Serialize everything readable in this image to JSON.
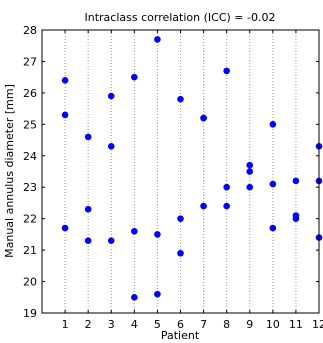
{
  "chart_data": {
    "type": "scatter",
    "title": "Intraclass correlation (ICC) = -0.02",
    "xlabel": "Patient",
    "ylabel": "Manual annulus diameter [mm]",
    "xlim": [
      0,
      12
    ],
    "ylim": [
      19,
      28
    ],
    "xticks": [
      1,
      2,
      3,
      4,
      5,
      6,
      7,
      8,
      9,
      10,
      11,
      12
    ],
    "xtick_labels": [
      "1",
      "2",
      "3",
      "4",
      "5",
      "6",
      "7",
      "8",
      "9",
      "10",
      "11",
      "12"
    ],
    "yticks": [
      19,
      20,
      21,
      22,
      23,
      24,
      25,
      26,
      27,
      28
    ],
    "ytick_labels": [
      "19",
      "20",
      "21",
      "22",
      "23",
      "24",
      "25",
      "26",
      "27",
      "28"
    ],
    "grid": "vertical dotted",
    "marker_color": "#0000ff",
    "points": [
      {
        "x": 1,
        "y": 26.4
      },
      {
        "x": 1,
        "y": 25.3
      },
      {
        "x": 1,
        "y": 21.7
      },
      {
        "x": 2,
        "y": 24.6
      },
      {
        "x": 2,
        "y": 22.3
      },
      {
        "x": 2,
        "y": 21.3
      },
      {
        "x": 3,
        "y": 25.9
      },
      {
        "x": 3,
        "y": 24.3
      },
      {
        "x": 3,
        "y": 21.3
      },
      {
        "x": 4,
        "y": 26.5
      },
      {
        "x": 4,
        "y": 21.6
      },
      {
        "x": 4,
        "y": 19.5
      },
      {
        "x": 5,
        "y": 27.7
      },
      {
        "x": 5,
        "y": 21.5
      },
      {
        "x": 5,
        "y": 19.6
      },
      {
        "x": 6,
        "y": 25.8
      },
      {
        "x": 6,
        "y": 22.0
      },
      {
        "x": 6,
        "y": 20.9
      },
      {
        "x": 7,
        "y": 25.2
      },
      {
        "x": 7,
        "y": 25.2
      },
      {
        "x": 7,
        "y": 22.4
      },
      {
        "x": 8,
        "y": 26.7
      },
      {
        "x": 8,
        "y": 23.0
      },
      {
        "x": 8,
        "y": 22.4
      },
      {
        "x": 9,
        "y": 23.7
      },
      {
        "x": 9,
        "y": 23.5
      },
      {
        "x": 9,
        "y": 23.0
      },
      {
        "x": 10,
        "y": 25.0
      },
      {
        "x": 10,
        "y": 23.1
      },
      {
        "x": 10,
        "y": 21.7
      },
      {
        "x": 11,
        "y": 23.2
      },
      {
        "x": 11,
        "y": 22.1
      },
      {
        "x": 11,
        "y": 22.0
      },
      {
        "x": 12,
        "y": 24.3
      },
      {
        "x": 12,
        "y": 23.2
      },
      {
        "x": 12,
        "y": 21.4
      }
    ]
  }
}
